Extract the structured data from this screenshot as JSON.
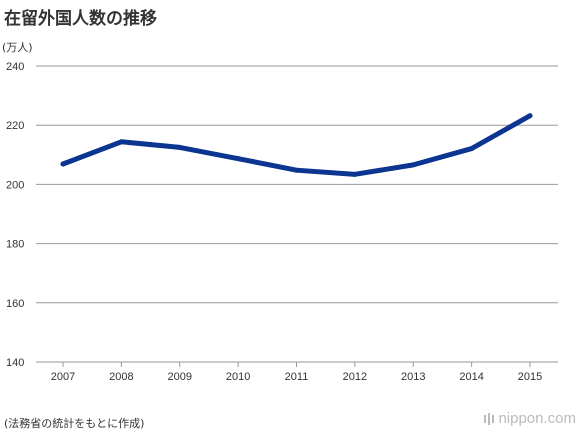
{
  "header": {
    "title": "在留外国人数の推移",
    "unit": "(万人)"
  },
  "footer": {
    "source": "(法務省の統計をもとに作成)",
    "brand": "nippon.com"
  },
  "colors": {
    "line": "#0b3590",
    "grid": "#999999",
    "text": "#333333",
    "brand": "#bbbbbb"
  },
  "chart_data": {
    "type": "line",
    "title": "在留外国人数の推移",
    "ylabel": "(万人)",
    "xlabel": "",
    "ylim": [
      140,
      240
    ],
    "yticks": [
      140,
      160,
      180,
      200,
      220,
      240
    ],
    "grid": true,
    "legend": "none",
    "x": [
      "2007",
      "2008",
      "2009",
      "2010",
      "2011",
      "2012",
      "2013",
      "2014",
      "2015"
    ],
    "series": [
      {
        "values": [
          206.9,
          214.4,
          212.5,
          208.7,
          204.8,
          203.4,
          206.6,
          212.1,
          223.2
        ]
      }
    ]
  }
}
